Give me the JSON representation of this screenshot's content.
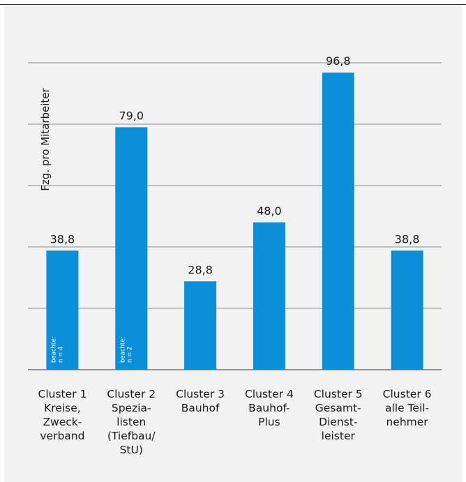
{
  "chart_data": {
    "type": "bar",
    "ylabel": "Fzg. pro Mitarbeiter",
    "ylim": [
      0,
      100
    ],
    "grid": true,
    "bar_color": "#0a8fd8",
    "categories": [
      "Cluster 1 Kreise, Zweck­verband",
      "Cluster 2 Spezia­listen (Tiefbau/ StU)",
      "Cluster 3 Bauhof",
      "Cluster 4 Bauhof-Plus",
      "Cluster 5 Gesamt-Dienst­leister",
      "Cluster 6 alle Teil­nehmer"
    ],
    "category_lines": [
      [
        "Cluster 1",
        "Kreise,",
        "Zweck-",
        "verband"
      ],
      [
        "Cluster 2",
        "Spezia-",
        "listen",
        "(Tiefbau/",
        "StU)"
      ],
      [
        "Cluster 3",
        "Bauhof"
      ],
      [
        "Cluster 4",
        "Bauhof-",
        "Plus"
      ],
      [
        "Cluster 5",
        "Gesamt-",
        "Dienst-",
        "leister"
      ],
      [
        "Cluster 6",
        "alle Teil-",
        "nehmer"
      ]
    ],
    "values": [
      38.8,
      79.0,
      28.8,
      48.0,
      96.8,
      38.8
    ],
    "value_labels": [
      "38,8",
      "79,0",
      "28,8",
      "48,0",
      "96,8",
      "38,8"
    ],
    "bar_notes": [
      [
        "beachte:",
        "n = 4"
      ],
      [
        "beachte:",
        "n = 2"
      ],
      null,
      null,
      null,
      null
    ]
  }
}
